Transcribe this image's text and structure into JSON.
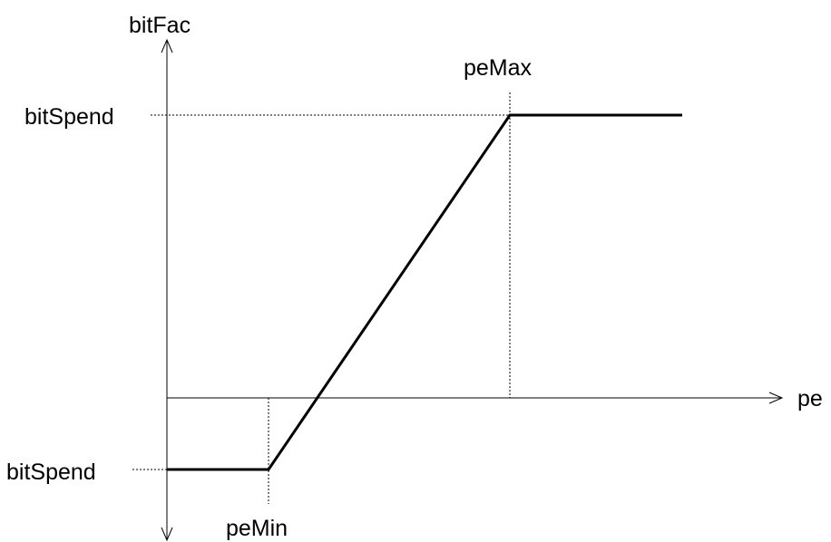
{
  "labels": {
    "y_axis": "bitFac",
    "x_axis": "pe",
    "y_top": "bitSpend",
    "y_bottom": "bitSpend",
    "pe_max": "peMax",
    "pe_min": "peMin"
  },
  "colors": {
    "stroke": "#000000",
    "background": "#ffffff"
  }
}
